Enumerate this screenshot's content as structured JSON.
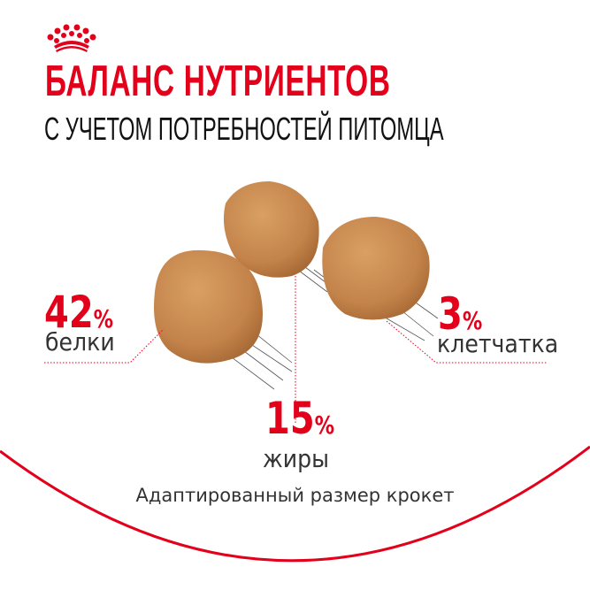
{
  "brand": {
    "logo": "crown-logo",
    "color": "#e3001b"
  },
  "header": {
    "title": "БАЛАНС НУТРИЕНТОВ",
    "subtitle": "С УЧЕТОМ ПОТРЕБНОСТЕЙ ПИТОМЦА"
  },
  "nutrients": [
    {
      "value": "42",
      "unit": "%",
      "label": "белки"
    },
    {
      "value": "15",
      "unit": "%",
      "label": "жиры"
    },
    {
      "value": "3",
      "unit": "%",
      "label": "клетчатка"
    }
  ],
  "footer": {
    "text": "Адаптированный размер крокет"
  },
  "colors": {
    "accent": "#e3001b",
    "kibble": "#c98a4e",
    "text": "#333333"
  }
}
